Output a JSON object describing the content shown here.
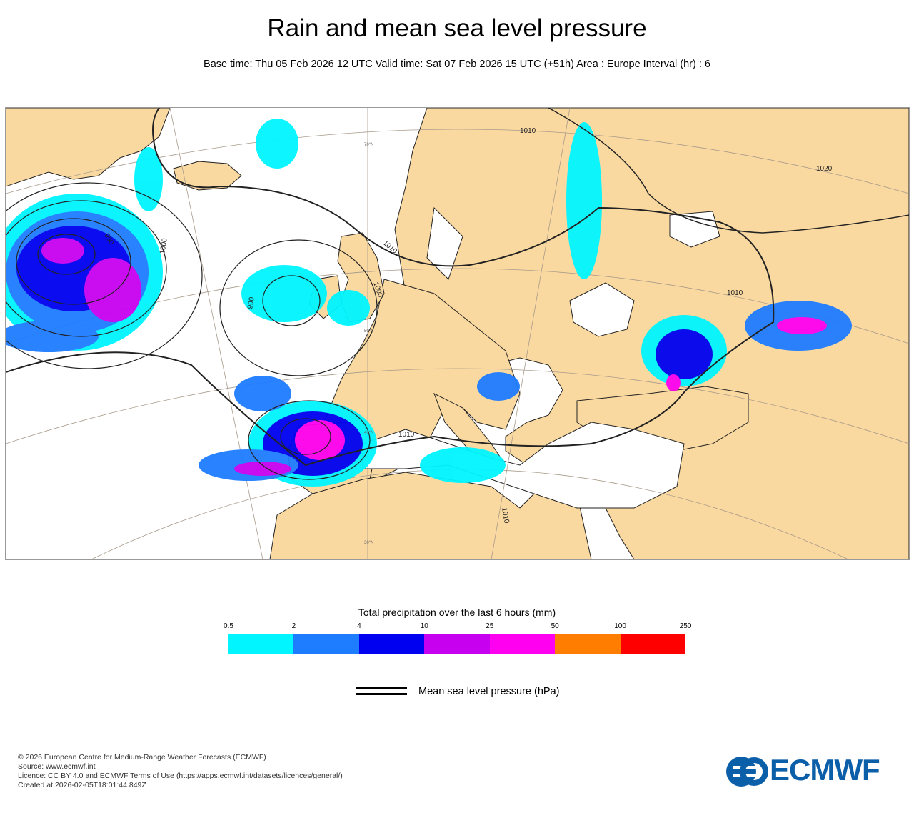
{
  "title": "Rain and mean sea level pressure",
  "subtitle": "Base time: Thu 05 Feb 2026 12 UTC Valid time: Sat 07 Feb 2026 15 UTC (+51h) Area : Europe Interval (hr) : 6",
  "map": {
    "land_color": "#fad9a1",
    "sea_color": "#ffffff",
    "contour_labels": {
      "c1010_ne": "1010",
      "c1020": "1020",
      "c990": "990",
      "c1000_w": "1000",
      "c990_b": "990",
      "c1000_c": "1000",
      "c1010_n": "1010",
      "c1010_sea": "1010",
      "c1010_bl": "1010",
      "c1010_af": "1010"
    },
    "lat_labels": {
      "lat70": "70°N",
      "lat50": "50°N",
      "lat40": "40°N",
      "lat30": "30°N"
    }
  },
  "legend": {
    "title": "Total precipitation over the last 6 hours (mm)",
    "ticks": [
      "0.5",
      "2",
      "4",
      "10",
      "25",
      "50",
      "100",
      "250"
    ],
    "colors": [
      "#00f5ff",
      "#1e7cff",
      "#0000f0",
      "#c800f0",
      "#ff00f0",
      "#ff7d00",
      "#ff0000"
    ],
    "mslp_label": "Mean sea level pressure (hPa)"
  },
  "footer": {
    "copyright": "© 2026 European Centre for Medium-Range Weather Forecasts (ECMWF)",
    "source": "Source: www.ecmwf.int",
    "licence": "Licence: CC BY 4.0 and ECMWF Terms of Use (https://apps.ecmwf.int/datasets/licences/general/)",
    "created": "Created at 2026-02-05T18:01:44.849Z"
  },
  "logo": {
    "text": "ECMWF",
    "color": "#0b5ea8"
  }
}
